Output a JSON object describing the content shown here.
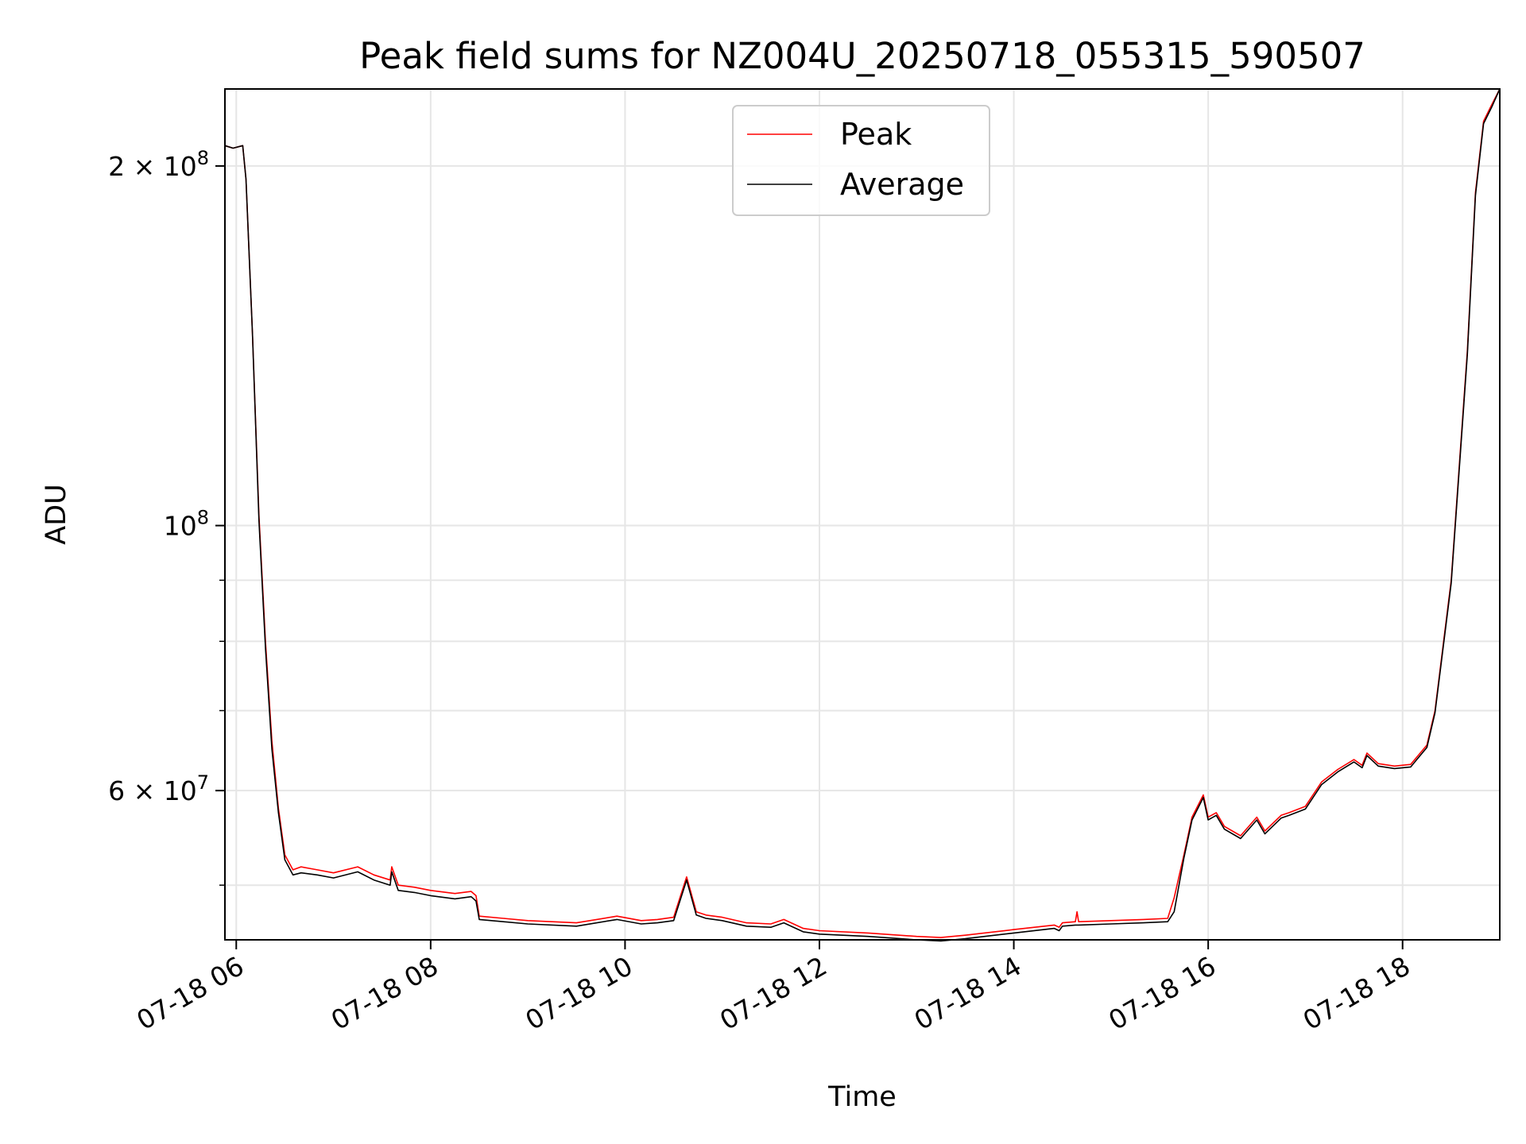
{
  "chart_data": {
    "type": "line",
    "title": "Peak field sums for NZ004U_20250718_055315_590507",
    "xlabel": "Time",
    "ylabel": "ADU",
    "x_ticks": [
      "07-18 06",
      "07-18 08",
      "07-18 10",
      "07-18 12",
      "07-18 14",
      "07-18 16",
      "07-18 18"
    ],
    "y_ticks": [
      {
        "value": 200000000,
        "mant": "2",
        "exp": "8"
      },
      {
        "value": 100000000,
        "mant": "",
        "exp": "8"
      },
      {
        "value": 60000000,
        "mant": "6",
        "exp": "7"
      }
    ],
    "y_scale": "log",
    "xlim": [
      "2025-07-18 05:53",
      "2025-07-18 19:00"
    ],
    "ylim": [
      45000000,
      232000000
    ],
    "grid": true,
    "legend": {
      "placement": "upper center",
      "entries": [
        "Peak",
        "Average"
      ]
    },
    "colors": {
      "Peak": "#ff0000",
      "Average": "#000000"
    },
    "series": [
      {
        "name": "Peak",
        "x": [
          "2025-07-18 05:53",
          "2025-07-18 05:58",
          "2025-07-18 06:04",
          "2025-07-18 06:06",
          "2025-07-18 06:10",
          "2025-07-18 06:14",
          "2025-07-18 06:18",
          "2025-07-18 06:22",
          "2025-07-18 06:26",
          "2025-07-18 06:30",
          "2025-07-18 06:35",
          "2025-07-18 06:40",
          "2025-07-18 06:50",
          "2025-07-18 07:00",
          "2025-07-18 07:15",
          "2025-07-18 07:25",
          "2025-07-18 07:35",
          "2025-07-18 07:36",
          "2025-07-18 07:40",
          "2025-07-18 07:50",
          "2025-07-18 08:00",
          "2025-07-18 08:15",
          "2025-07-18 08:25",
          "2025-07-18 08:28",
          "2025-07-18 08:30",
          "2025-07-18 08:45",
          "2025-07-18 09:00",
          "2025-07-18 09:30",
          "2025-07-18 09:55",
          "2025-07-18 10:10",
          "2025-07-18 10:20",
          "2025-07-18 10:30",
          "2025-07-18 10:38",
          "2025-07-18 10:44",
          "2025-07-18 10:50",
          "2025-07-18 11:00",
          "2025-07-18 11:15",
          "2025-07-18 11:30",
          "2025-07-18 11:38",
          "2025-07-18 11:50",
          "2025-07-18 12:00",
          "2025-07-18 12:30",
          "2025-07-18 13:00",
          "2025-07-18 13:15",
          "2025-07-18 13:30",
          "2025-07-18 14:00",
          "2025-07-18 14:25",
          "2025-07-18 14:28",
          "2025-07-18 14:30",
          "2025-07-18 14:38",
          "2025-07-18 14:39",
          "2025-07-18 14:40",
          "2025-07-18 15:00",
          "2025-07-18 15:20",
          "2025-07-18 15:35",
          "2025-07-18 15:39",
          "2025-07-18 15:45",
          "2025-07-18 15:50",
          "2025-07-18 15:57",
          "2025-07-18 16:00",
          "2025-07-18 16:05",
          "2025-07-18 16:10",
          "2025-07-18 16:20",
          "2025-07-18 16:30",
          "2025-07-18 16:35",
          "2025-07-18 16:45",
          "2025-07-18 16:50",
          "2025-07-18 17:00",
          "2025-07-18 17:10",
          "2025-07-18 17:20",
          "2025-07-18 17:30",
          "2025-07-18 17:35",
          "2025-07-18 17:38",
          "2025-07-18 17:45",
          "2025-07-18 17:55",
          "2025-07-18 18:05",
          "2025-07-18 18:15",
          "2025-07-18 18:20",
          "2025-07-18 18:30",
          "2025-07-18 18:40",
          "2025-07-18 18:45",
          "2025-07-18 18:50",
          "2025-07-18 18:55",
          "2025-07-18 19:00"
        ],
        "y": [
          208000000,
          207000000,
          208000000,
          195000000,
          145000000,
          102000000,
          80000000,
          66000000,
          58000000,
          53000000,
          51500000,
          51800000,
          51500000,
          51200000,
          51800000,
          51000000,
          50500000,
          51800000,
          50000000,
          49800000,
          49500000,
          49200000,
          49400000,
          49000000,
          47100000,
          46900000,
          46700000,
          46500000,
          47100000,
          46700000,
          46800000,
          47000000,
          50800000,
          47500000,
          47200000,
          47000000,
          46500000,
          46400000,
          46800000,
          46000000,
          45800000,
          45600000,
          45300000,
          45200000,
          45400000,
          45900000,
          46300000,
          46100000,
          46500000,
          46600000,
          47500000,
          46600000,
          46700000,
          46800000,
          46900000,
          48800000,
          53000000,
          57000000,
          59500000,
          57000000,
          57500000,
          56000000,
          55000000,
          57000000,
          55500000,
          57200000,
          57500000,
          58200000,
          61000000,
          62500000,
          63700000,
          63000000,
          64500000,
          63200000,
          62900000,
          63100000,
          65500000,
          70000000,
          90000000,
          140000000,
          190000000,
          218000000,
          225000000,
          232000000
        ]
      },
      {
        "name": "Average",
        "x": [
          "2025-07-18 05:53",
          "2025-07-18 05:58",
          "2025-07-18 06:04",
          "2025-07-18 06:06",
          "2025-07-18 06:10",
          "2025-07-18 06:14",
          "2025-07-18 06:18",
          "2025-07-18 06:22",
          "2025-07-18 06:26",
          "2025-07-18 06:30",
          "2025-07-18 06:35",
          "2025-07-18 06:40",
          "2025-07-18 06:50",
          "2025-07-18 07:00",
          "2025-07-18 07:15",
          "2025-07-18 07:25",
          "2025-07-18 07:35",
          "2025-07-18 07:36",
          "2025-07-18 07:40",
          "2025-07-18 07:50",
          "2025-07-18 08:00",
          "2025-07-18 08:15",
          "2025-07-18 08:25",
          "2025-07-18 08:28",
          "2025-07-18 08:30",
          "2025-07-18 08:45",
          "2025-07-18 09:00",
          "2025-07-18 09:30",
          "2025-07-18 09:55",
          "2025-07-18 10:10",
          "2025-07-18 10:20",
          "2025-07-18 10:30",
          "2025-07-18 10:38",
          "2025-07-18 10:44",
          "2025-07-18 10:50",
          "2025-07-18 11:00",
          "2025-07-18 11:15",
          "2025-07-18 11:30",
          "2025-07-18 11:38",
          "2025-07-18 11:50",
          "2025-07-18 12:00",
          "2025-07-18 12:30",
          "2025-07-18 13:00",
          "2025-07-18 13:15",
          "2025-07-18 13:30",
          "2025-07-18 14:00",
          "2025-07-18 14:25",
          "2025-07-18 14:28",
          "2025-07-18 14:30",
          "2025-07-18 14:38",
          "2025-07-18 14:39",
          "2025-07-18 14:40",
          "2025-07-18 15:00",
          "2025-07-18 15:20",
          "2025-07-18 15:35",
          "2025-07-18 15:39",
          "2025-07-18 15:45",
          "2025-07-18 15:50",
          "2025-07-18 15:57",
          "2025-07-18 16:00",
          "2025-07-18 16:05",
          "2025-07-18 16:10",
          "2025-07-18 16:20",
          "2025-07-18 16:30",
          "2025-07-18 16:35",
          "2025-07-18 16:45",
          "2025-07-18 16:50",
          "2025-07-18 17:00",
          "2025-07-18 17:10",
          "2025-07-18 17:20",
          "2025-07-18 17:30",
          "2025-07-18 17:35",
          "2025-07-18 17:38",
          "2025-07-18 17:45",
          "2025-07-18 17:55",
          "2025-07-18 18:05",
          "2025-07-18 18:15",
          "2025-07-18 18:20",
          "2025-07-18 18:30",
          "2025-07-18 18:40",
          "2025-07-18 18:45",
          "2025-07-18 18:50",
          "2025-07-18 18:55",
          "2025-07-18 19:00"
        ],
        "y": [
          208000000,
          207000000,
          208000000,
          195000000,
          145000000,
          101000000,
          79000000,
          65000000,
          57500000,
          52500000,
          51000000,
          51200000,
          51000000,
          50700000,
          51300000,
          50500000,
          50000000,
          51300000,
          49500000,
          49300000,
          49000000,
          48700000,
          48900000,
          48500000,
          46800000,
          46600000,
          46400000,
          46200000,
          46800000,
          46400000,
          46500000,
          46700000,
          50500000,
          47200000,
          46900000,
          46700000,
          46200000,
          46100000,
          46500000,
          45700000,
          45500000,
          45300000,
          45000000,
          44900000,
          45100000,
          45600000,
          46000000,
          45800000,
          46200000,
          46300000,
          46300000,
          46300000,
          46400000,
          46500000,
          46600000,
          47500000,
          52700000,
          56700000,
          59200000,
          56700000,
          57200000,
          55700000,
          54700000,
          56700000,
          55200000,
          56900000,
          57200000,
          57900000,
          60700000,
          62200000,
          63400000,
          62700000,
          64200000,
          62900000,
          62600000,
          62800000,
          65200000,
          69700000,
          89500000,
          139000000,
          189000000,
          217000000,
          224000000,
          232000000
        ]
      }
    ]
  }
}
